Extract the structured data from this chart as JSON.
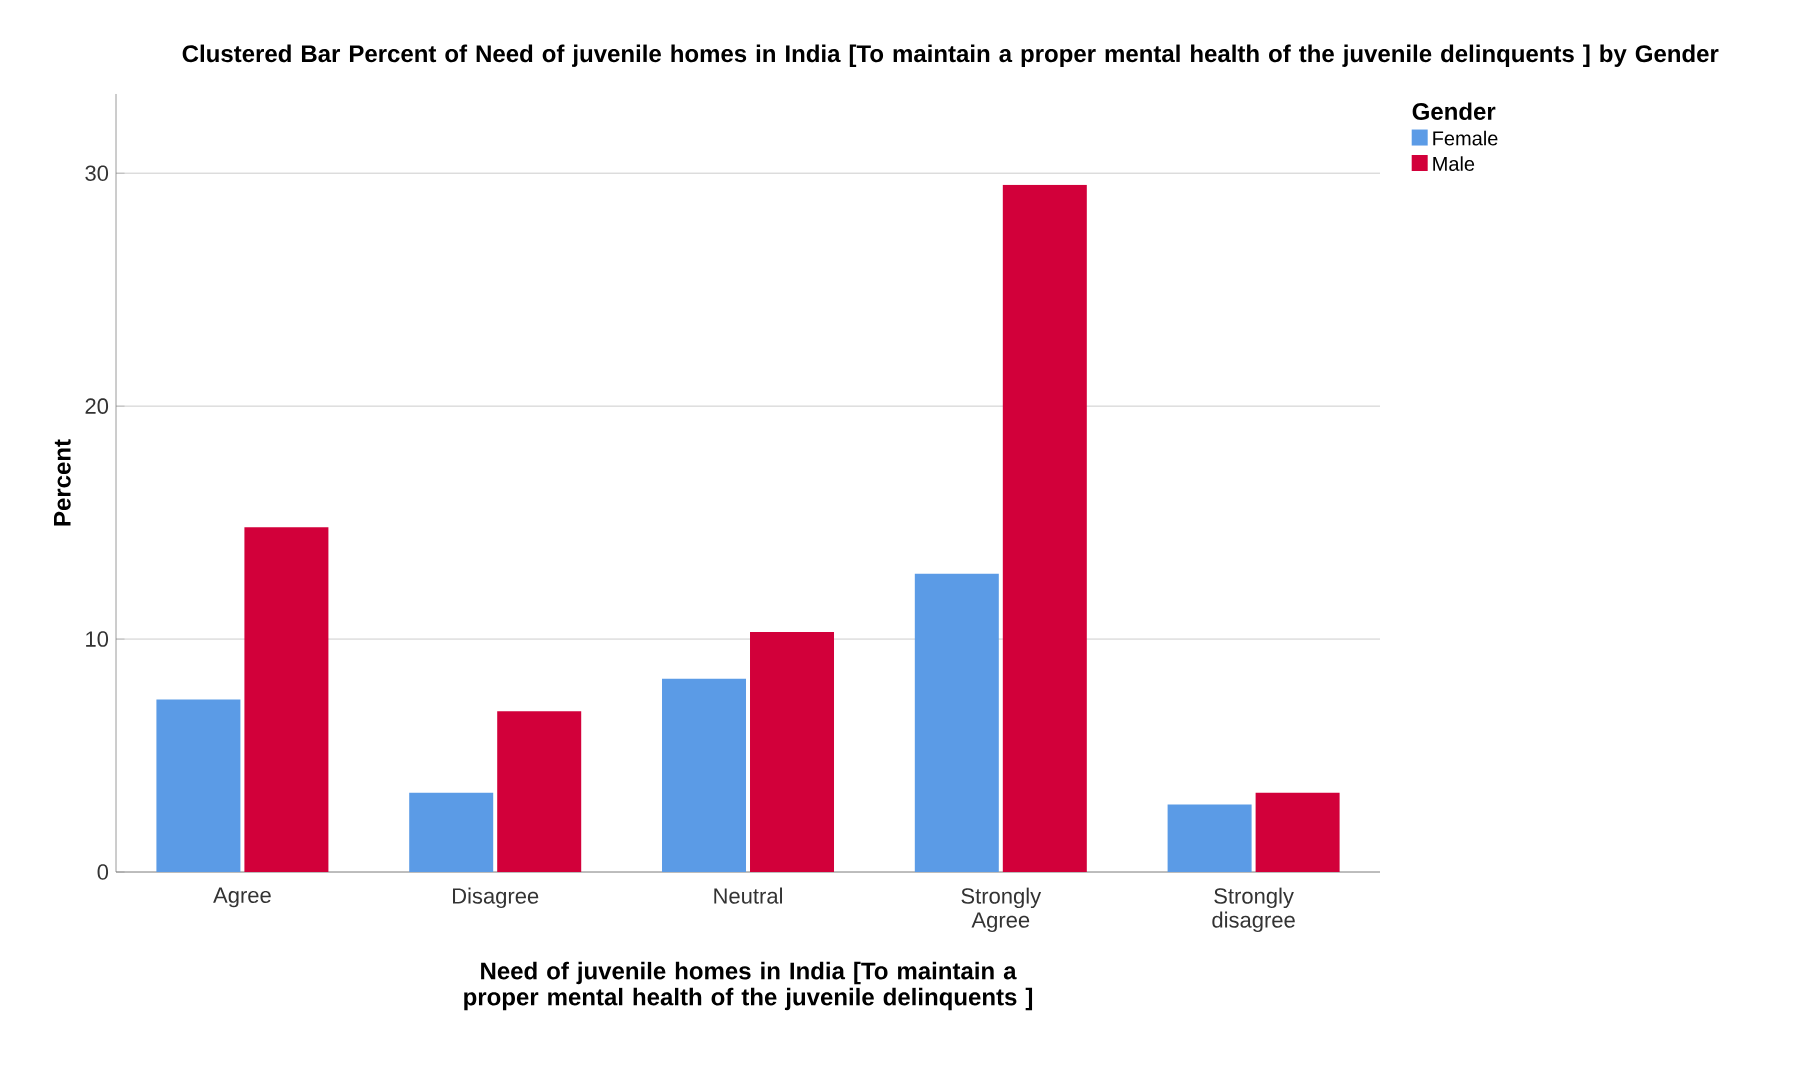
{
  "chart_data": {
    "type": "bar",
    "title": "Clustered Bar Percent of Need of juvenile homes in India [To maintain a proper mental health of the juvenile delinquents ] by Gender",
    "xlabel": "Need of juvenile homes in India [To maintain a proper mental health of the juvenile delinquents ]",
    "ylabel": "Percent",
    "legend_title": "Gender",
    "categories": [
      "Agree",
      "Disagree",
      "Neutral",
      "Strongly Agree",
      "Strongly disagree"
    ],
    "series": [
      {
        "name": "Female",
        "color": "#5b9be6",
        "values": [
          7.4,
          3.4,
          8.3,
          12.8,
          2.9
        ]
      },
      {
        "name": "Male",
        "color": "#d2003a",
        "values": [
          14.8,
          6.9,
          10.3,
          29.5,
          3.4
        ]
      }
    ],
    "ylim": [
      0,
      33.4
    ],
    "yticks": [
      0,
      10,
      20,
      30
    ],
    "grid": "y",
    "legend": "top right"
  }
}
